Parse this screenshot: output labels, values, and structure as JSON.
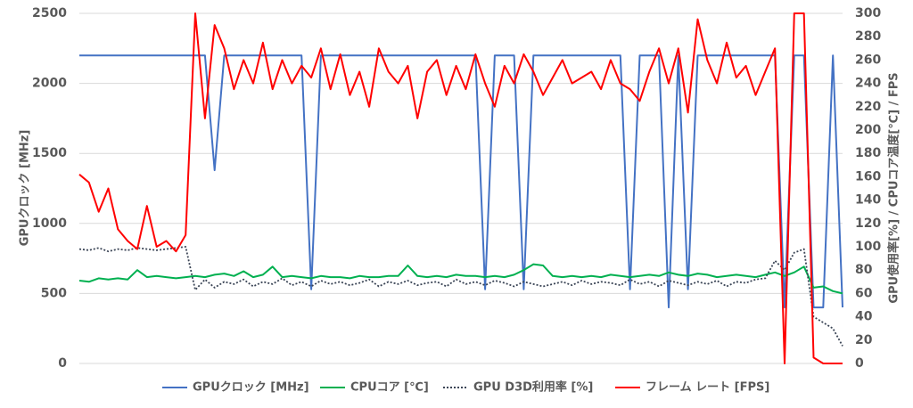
{
  "chart_data": {
    "type": "line",
    "y_label": "GPUクロック [MHz]",
    "y2_label": "GPU使用率[%] / CPUコア温度[℃] / FPS",
    "categories": [
      null,
      null,
      null,
      null,
      null,
      null,
      null,
      null,
      null,
      null,
      null,
      null,
      null,
      null,
      null,
      null,
      null,
      null,
      null,
      null,
      null,
      null,
      null,
      null,
      null,
      null,
      null,
      null,
      null,
      null,
      null,
      null,
      null,
      null,
      null,
      null,
      null,
      null,
      null,
      null,
      null,
      null,
      null,
      null,
      null,
      null,
      null,
      null,
      null,
      null,
      null,
      null,
      null,
      null,
      null,
      null,
      null,
      null,
      null,
      null,
      null,
      null,
      null,
      null,
      null,
      null,
      null,
      null,
      null,
      null,
      null,
      null,
      null,
      null,
      null,
      null,
      null,
      null,
      null,
      null
    ],
    "ylim": [
      0,
      2500
    ],
    "yticks": [
      0,
      500,
      1000,
      1500,
      2000,
      2500
    ],
    "y2lim": [
      0,
      300
    ],
    "y2ticks": [
      0,
      20,
      40,
      60,
      80,
      100,
      120,
      140,
      160,
      180,
      200,
      220,
      240,
      260,
      280,
      300
    ],
    "grid": true,
    "legend": "bottom",
    "series": [
      {
        "name": "GPUクロック [MHz]",
        "color": "#4472c4",
        "axis": "y",
        "dash": "none",
        "values": [
          2200,
          2200,
          2200,
          2200,
          2200,
          2200,
          2200,
          2200,
          2200,
          2200,
          2200,
          2200,
          2200,
          2200,
          1380,
          2200,
          2200,
          2200,
          2200,
          2200,
          2200,
          2200,
          2200,
          2200,
          530,
          2200,
          2200,
          2200,
          2200,
          2200,
          2200,
          2200,
          2200,
          2200,
          2200,
          2200,
          2200,
          2200,
          2200,
          2200,
          2200,
          2200,
          530,
          2200,
          2200,
          2200,
          530,
          2200,
          2200,
          2200,
          2200,
          2200,
          2200,
          2200,
          2200,
          2200,
          2200,
          530,
          2200,
          2200,
          2200,
          400,
          2200,
          530,
          2200,
          2200,
          2200,
          2200,
          2200,
          2200,
          2200,
          2200,
          2200,
          400,
          2200,
          2200,
          400,
          400,
          2200,
          400
        ]
      },
      {
        "name": "CPUコア [℃]",
        "color": "#00b050",
        "axis": "y2",
        "dash": "none",
        "values": [
          71,
          70,
          73,
          72,
          73,
          72,
          80,
          74,
          75,
          74,
          73,
          74,
          75,
          74,
          76,
          77,
          75,
          79,
          74,
          76,
          83,
          74,
          75,
          74,
          73,
          75,
          74,
          74,
          73,
          75,
          74,
          74,
          75,
          75,
          84,
          75,
          74,
          75,
          74,
          76,
          75,
          75,
          74,
          75,
          74,
          76,
          80,
          85,
          84,
          75,
          74,
          75,
          74,
          75,
          74,
          76,
          75,
          74,
          75,
          76,
          75,
          78,
          76,
          75,
          77,
          76,
          74,
          75,
          76,
          75,
          74,
          76,
          78,
          75,
          78,
          83,
          65,
          66,
          62,
          60
        ]
      },
      {
        "name": "GPU D3D利用率 [%]",
        "color": "#3b4556",
        "axis": "y2",
        "dash": "dotted",
        "values": [
          98,
          97,
          99,
          96,
          98,
          97,
          99,
          98,
          97,
          98,
          99,
          100,
          63,
          72,
          65,
          70,
          68,
          72,
          66,
          70,
          68,
          73,
          67,
          70,
          66,
          71,
          68,
          70,
          67,
          69,
          72,
          66,
          70,
          68,
          71,
          67,
          69,
          70,
          66,
          72,
          68,
          70,
          67,
          71,
          69,
          66,
          70,
          68,
          66,
          68,
          70,
          67,
          71,
          68,
          70,
          69,
          67,
          72,
          68,
          70,
          66,
          71,
          69,
          67,
          70,
          68,
          71,
          66,
          70,
          69,
          72,
          73,
          88,
          80,
          95,
          98,
          40,
          35,
          30,
          15
        ]
      },
      {
        "name": "フレーム レート [FPS]",
        "color": "#ff0000",
        "axis": "y2",
        "dash": "none",
        "values": [
          162,
          155,
          130,
          150,
          115,
          105,
          98,
          135,
          100,
          105,
          96,
          110,
          300,
          210,
          290,
          270,
          235,
          260,
          240,
          275,
          235,
          260,
          240,
          255,
          245,
          270,
          235,
          265,
          230,
          250,
          220,
          270,
          250,
          240,
          255,
          210,
          250,
          260,
          230,
          255,
          235,
          265,
          240,
          220,
          255,
          240,
          265,
          250,
          230,
          245,
          260,
          240,
          245,
          250,
          235,
          260,
          240,
          235,
          225,
          250,
          270,
          240,
          270,
          215,
          295,
          260,
          240,
          275,
          245,
          255,
          230,
          250,
          270,
          0,
          300,
          300,
          5,
          0,
          0,
          0
        ]
      }
    ]
  }
}
